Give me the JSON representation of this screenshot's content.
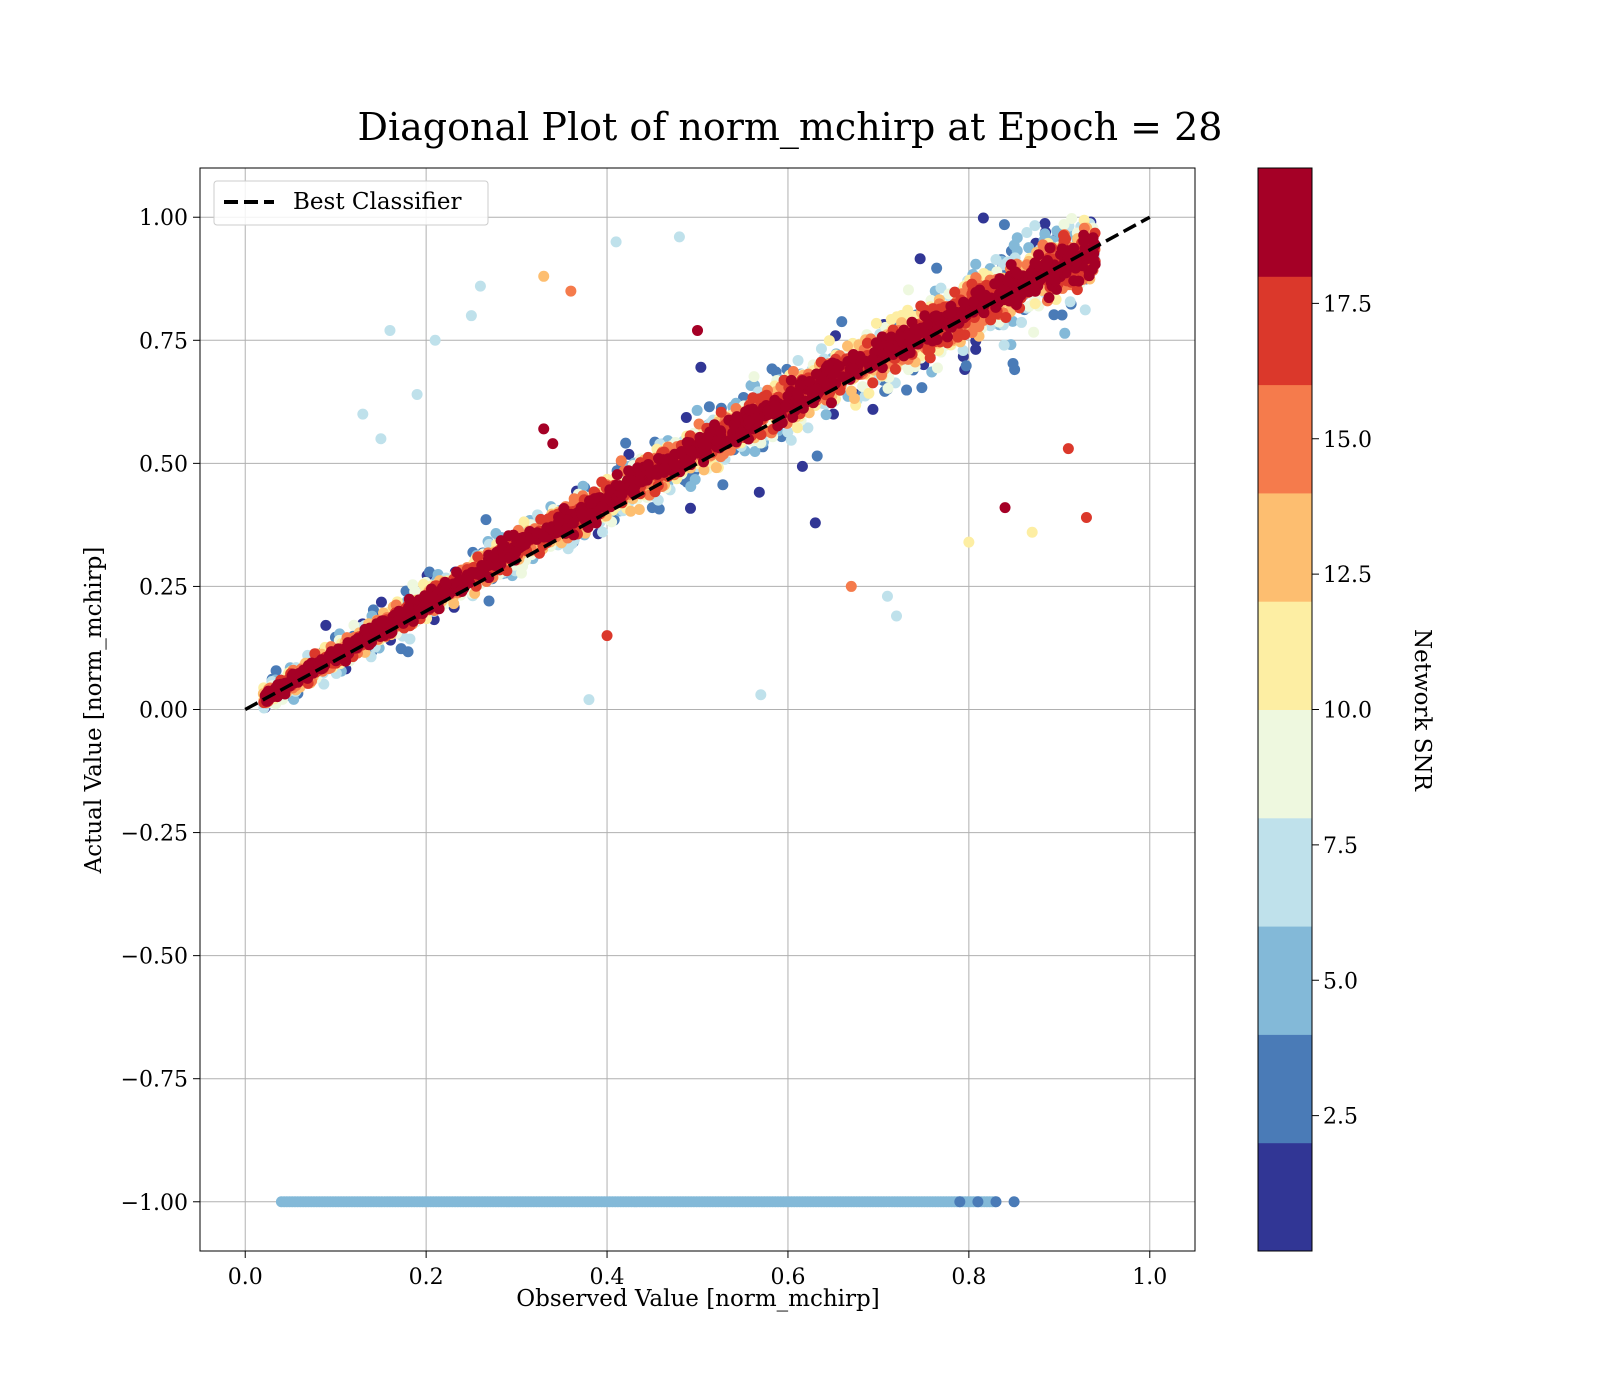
{
  "chart_data": {
    "type": "scatter",
    "title": "Diagonal Plot of norm_mchirp at Epoch = 28",
    "xlabel": "Observed Value [norm_mchirp]",
    "ylabel": "Actual Value [norm_mchirp]",
    "xlim": [
      -0.05,
      1.05
    ],
    "ylim": [
      -1.1,
      1.1
    ],
    "xticks": [
      0.0,
      0.2,
      0.4,
      0.6,
      0.8,
      1.0
    ],
    "xtick_labels": [
      "0.0",
      "0.2",
      "0.4",
      "0.6",
      "0.8",
      "1.0"
    ],
    "yticks": [
      -1.0,
      -0.75,
      -0.5,
      -0.25,
      0.0,
      0.25,
      0.5,
      0.75,
      1.0
    ],
    "ytick_labels": [
      "−1.00",
      "−0.75",
      "−0.50",
      "−0.25",
      "0.00",
      "0.25",
      "0.50",
      "0.75",
      "1.00"
    ],
    "grid": true,
    "legend": {
      "placement": "top-left",
      "entries": [
        {
          "label": "Best Classifier",
          "style": "dashed",
          "color": "#000000"
        }
      ]
    },
    "reference_line": {
      "name": "Best Classifier",
      "x": [
        0.0,
        1.0
      ],
      "y": [
        0.0,
        1.0
      ],
      "style": "dashed"
    },
    "colorbar": {
      "label": "Network SNR",
      "range": [
        0,
        20
      ],
      "ticks": [
        2.5,
        5.0,
        7.5,
        10.0,
        12.5,
        15.0,
        17.5
      ],
      "tick_labels": [
        "2.5",
        "5.0",
        "7.5",
        "10.0",
        "12.5",
        "15.0",
        "17.5"
      ],
      "bins": [
        {
          "from": 0,
          "to": 2,
          "color": "#313695"
        },
        {
          "from": 2,
          "to": 4,
          "color": "#4a7bb7"
        },
        {
          "from": 4,
          "to": 6,
          "color": "#83b9d8"
        },
        {
          "from": 6,
          "to": 8,
          "color": "#bfe1eb"
        },
        {
          "from": 8,
          "to": 10,
          "color": "#eef8df"
        },
        {
          "from": 10,
          "to": 12,
          "color": "#fdeea3"
        },
        {
          "from": 12,
          "to": 14,
          "color": "#fdbe70"
        },
        {
          "from": 14,
          "to": 16,
          "color": "#f57b4c"
        },
        {
          "from": 16,
          "to": 18,
          "color": "#db382b"
        },
        {
          "from": 18,
          "to": 20,
          "color": "#a50026"
        }
      ]
    },
    "series": [
      {
        "description": "low-SNR (4-6) points at actual value -1",
        "snr": 5.0,
        "x_range": [
          0.04,
          0.83
        ],
        "y": -1.0
      },
      {
        "description": "lowest-SNR points at actual value -1 (right end)",
        "snr": 2.5,
        "points": [
          [
            0.81,
            -1.0
          ],
          [
            0.83,
            -1.0
          ],
          [
            0.85,
            -1.0
          ],
          [
            0.79,
            -1.0
          ]
        ]
      },
      {
        "description": "main cloud of predictions near the diagonal",
        "x_range": [
          0.02,
          0.94
        ],
        "y_range": [
          0.0,
          1.0
        ]
      }
    ],
    "outliers": [
      {
        "x": 0.16,
        "y": 0.77,
        "snr": 7
      },
      {
        "x": 0.19,
        "y": 0.64,
        "snr": 7
      },
      {
        "x": 0.13,
        "y": 0.6,
        "snr": 7
      },
      {
        "x": 0.15,
        "y": 0.55,
        "snr": 7
      },
      {
        "x": 0.26,
        "y": 0.86,
        "snr": 7
      },
      {
        "x": 0.21,
        "y": 0.75,
        "snr": 7
      },
      {
        "x": 0.25,
        "y": 0.8,
        "snr": 7
      },
      {
        "x": 0.33,
        "y": 0.88,
        "snr": 13
      },
      {
        "x": 0.36,
        "y": 0.85,
        "snr": 15
      },
      {
        "x": 0.41,
        "y": 0.95,
        "snr": 7
      },
      {
        "x": 0.48,
        "y": 0.96,
        "snr": 7
      },
      {
        "x": 0.57,
        "y": 0.03,
        "snr": 7
      },
      {
        "x": 0.38,
        "y": 0.02,
        "snr": 7
      },
      {
        "x": 0.93,
        "y": 0.39,
        "snr": 17
      },
      {
        "x": 0.91,
        "y": 0.53,
        "snr": 17
      },
      {
        "x": 0.87,
        "y": 0.36,
        "snr": 11
      },
      {
        "x": 0.72,
        "y": 0.19,
        "snr": 7
      },
      {
        "x": 0.84,
        "y": 0.41,
        "snr": 19
      },
      {
        "x": 0.67,
        "y": 0.25,
        "snr": 15
      },
      {
        "x": 0.4,
        "y": 0.15,
        "snr": 17
      },
      {
        "x": 0.33,
        "y": 0.57,
        "snr": 19
      },
      {
        "x": 0.34,
        "y": 0.54,
        "snr": 19
      },
      {
        "x": 0.5,
        "y": 0.77,
        "snr": 19
      },
      {
        "x": 0.71,
        "y": 0.23,
        "snr": 7
      },
      {
        "x": 0.8,
        "y": 0.34,
        "snr": 11
      }
    ]
  }
}
